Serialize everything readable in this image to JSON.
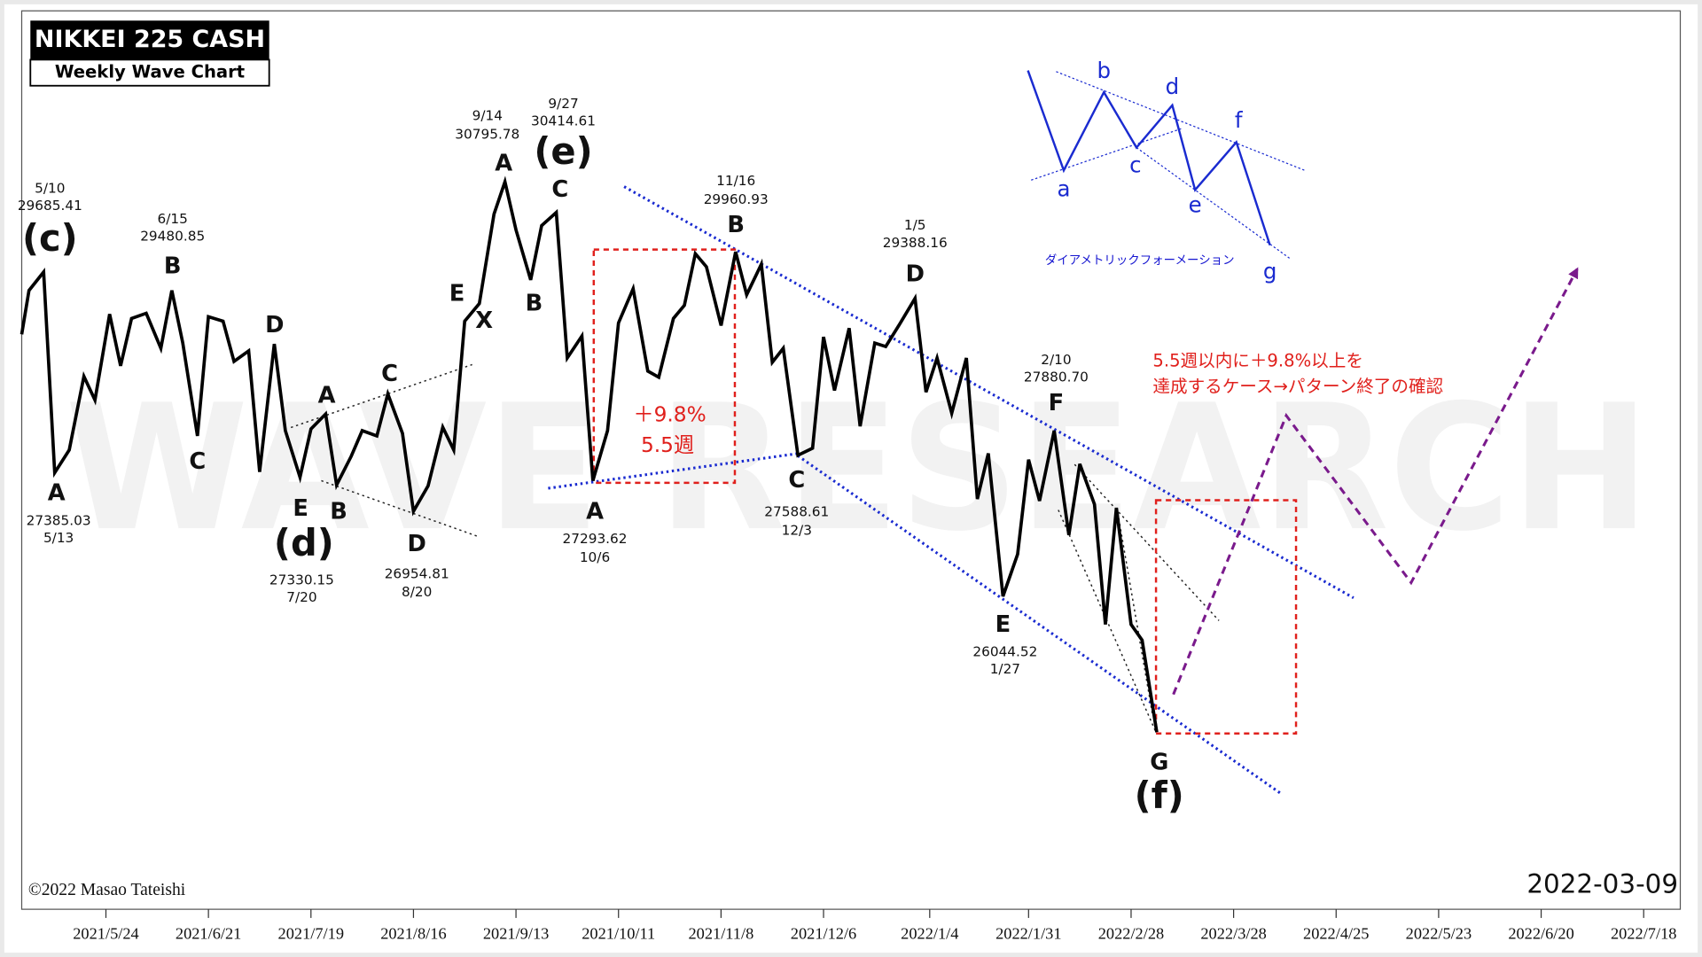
{
  "chart_data": {
    "type": "line",
    "title": "NIKKEI 225 CASH",
    "subtitle": "Weekly Wave Chart",
    "watermark": "WAVE RESEARCH",
    "copyright": "©2022 Masao Tateishi",
    "date_stamp": "2022-03-09",
    "color": "#000000",
    "xlim": [
      "2021-05-01",
      "2022-07-28"
    ],
    "ylim": [
      22500,
      32750
    ],
    "xticks": [
      {
        "value": "2021-05-24",
        "label": "2021/5/24"
      },
      {
        "value": "2021-06-21",
        "label": "2021/6/21"
      },
      {
        "value": "2021-07-19",
        "label": "2021/7/19"
      },
      {
        "value": "2021-08-16",
        "label": "2021/8/16"
      },
      {
        "value": "2021-09-13",
        "label": "2021/9/13"
      },
      {
        "value": "2021-10-11",
        "label": "2021/10/11"
      },
      {
        "value": "2021-11-08",
        "label": "2021/11/8"
      },
      {
        "value": "2021-12-06",
        "label": "2021/12/6"
      },
      {
        "value": "2022-01-04",
        "label": "2022/1/4"
      },
      {
        "value": "2022-01-31",
        "label": "2022/1/31"
      },
      {
        "value": "2022-02-28",
        "label": "2022/2/28"
      },
      {
        "value": "2022-03-28",
        "label": "2022/3/28"
      },
      {
        "value": "2022-04-25",
        "label": "2022/4/25"
      },
      {
        "value": "2022-05-23",
        "label": "2022/5/23"
      },
      {
        "value": "2022-06-20",
        "label": "2022/6/20"
      },
      {
        "value": "2022-07-18",
        "label": "2022/7/18"
      }
    ],
    "x": [
      "2021-05-01",
      "2021-05-03",
      "2021-05-07",
      "2021-05-10",
      "2021-05-14",
      "2021-05-18",
      "2021-05-21",
      "2021-05-25",
      "2021-05-28",
      "2021-05-31",
      "2021-06-04",
      "2021-06-08",
      "2021-06-11",
      "2021-06-14",
      "2021-06-18",
      "2021-06-21",
      "2021-06-25",
      "2021-06-28",
      "2021-07-02",
      "2021-07-05",
      "2021-07-09",
      "2021-07-12",
      "2021-07-16",
      "2021-07-19",
      "2021-07-23",
      "2021-07-26",
      "2021-07-30",
      "2021-08-02",
      "2021-08-06",
      "2021-08-09",
      "2021-08-13",
      "2021-08-16",
      "2021-08-20",
      "2021-08-24",
      "2021-08-27",
      "2021-08-30",
      "2021-09-03",
      "2021-09-07",
      "2021-09-10",
      "2021-09-13",
      "2021-09-17",
      "2021-09-20",
      "2021-09-24",
      "2021-09-27",
      "2021-10-01",
      "2021-10-04",
      "2021-10-08",
      "2021-10-11",
      "2021-10-15",
      "2021-10-19",
      "2021-10-22",
      "2021-10-26",
      "2021-10-29",
      "2021-11-01",
      "2021-11-04",
      "2021-11-08",
      "2021-11-12",
      "2021-11-15",
      "2021-11-19",
      "2021-11-22",
      "2021-11-25",
      "2021-11-29",
      "2021-12-03",
      "2021-12-06",
      "2021-12-09",
      "2021-12-13",
      "2021-12-16",
      "2021-12-20",
      "2021-12-23",
      "2021-12-27",
      "2021-12-31",
      "2022-01-03",
      "2022-01-06",
      "2022-01-10",
      "2022-01-14",
      "2022-01-17",
      "2022-01-20",
      "2022-01-24",
      "2022-01-28",
      "2022-01-31",
      "2022-02-03",
      "2022-02-07",
      "2022-02-11",
      "2022-02-14",
      "2022-02-18",
      "2022-02-21",
      "2022-02-24",
      "2022-02-28",
      "2022-03-03",
      "2022-03-07"
    ],
    "values": [
      29060,
      29560,
      29770,
      27480,
      27740,
      28580,
      28310,
      29290,
      28700,
      29240,
      29300,
      28900,
      29560,
      28960,
      27900,
      29260,
      29210,
      28750,
      28870,
      27490,
      28950,
      27960,
      27430,
      27980,
      28150,
      27340,
      27670,
      27960,
      27900,
      28380,
      27930,
      27040,
      27330,
      28000,
      27740,
      29210,
      29410,
      30430,
      30800,
      30250,
      29680,
      30300,
      30450,
      28790,
      29040,
      27390,
      27960,
      29190,
      29580,
      28640,
      28570,
      29240,
      29390,
      29980,
      29830,
      29160,
      30000,
      29510,
      29860,
      28740,
      28900,
      27680,
      27760,
      29030,
      28420,
      29130,
      28010,
      28960,
      28920,
      29190,
      29470,
      28400,
      28790,
      28160,
      28790,
      27180,
      27700,
      26070,
      26550,
      27630,
      27160,
      27960,
      26770,
      27580,
      27120,
      25750,
      27080,
      25750,
      25570,
      24520
    ],
    "annotations": [
      "(c)",
      "5/10",
      "29685.41",
      "A",
      "27385.03",
      "5/13",
      "6/15",
      "29480.85",
      "B",
      "C",
      "D",
      "E",
      "(d)",
      "27330.15",
      "7/20",
      "A",
      "B",
      "C",
      "D",
      "26954.81",
      "8/20",
      "E",
      "X",
      "9/14",
      "30795.78",
      "A",
      "B",
      "9/27",
      "30414.61",
      "(e)",
      "C",
      "A",
      "27293.62",
      "10/6",
      "＋9.8%",
      "5.5週",
      "11/16",
      "29960.93",
      "B",
      "C",
      "27588.61",
      "12/3",
      "1/5",
      "29388.16",
      "D",
      "2/10",
      "27880.70",
      "F",
      "E",
      "26044.52",
      "1/27",
      "G",
      "(f)"
    ],
    "notes": [
      "5.5週以内に＋9.8%以上を",
      "達成するケース→パターン終了の確認"
    ],
    "inset": {
      "labels": [
        "a",
        "b",
        "c",
        "d",
        "e",
        "f",
        "g"
      ],
      "caption": "ダイアメトリックフォーメーション"
    }
  }
}
